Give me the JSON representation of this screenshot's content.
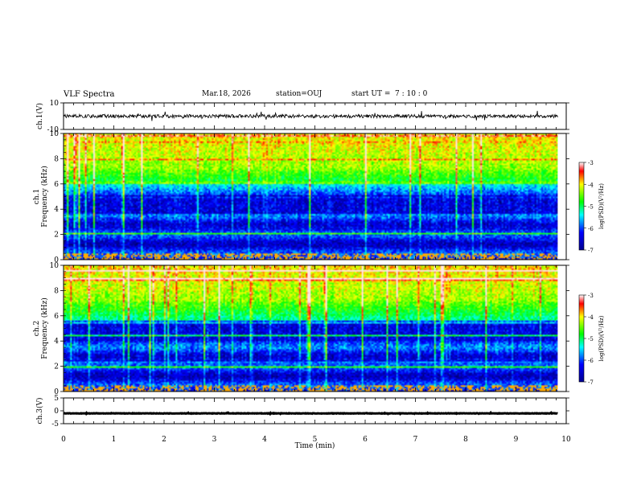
{
  "header": {
    "title": "VLF Spectra",
    "date": "Mar.18, 2026",
    "station": "station=OUJ",
    "start_ut_label": "start  UT =",
    "start_ut_value": "7 : 10 : 0"
  },
  "colors": {
    "trace": "#000000",
    "frame": "#000000"
  },
  "chart_data": [
    {
      "type": "line",
      "name": "ch1-waveform",
      "ylabel": "ch.1(V)",
      "ylim": [
        -10,
        10
      ],
      "yticks": [
        "10",
        "-10"
      ],
      "x_range_min": [
        0,
        9.83
      ],
      "description_values": {
        "baseline": 0,
        "amplitude_approx": 1.5
      }
    },
    {
      "type": "heatmap",
      "name": "ch1-spectrogram",
      "ylabel_line1": "ch.1",
      "ylabel_line2": "Frequency (kHz)",
      "ylim": [
        0,
        10
      ],
      "yticks": [
        "0",
        "2",
        "4",
        "6",
        "8",
        "10"
      ],
      "xlim": [
        0,
        10
      ],
      "data_end_min": 9.83,
      "colorbar": {
        "label": "log(PSD)(V²/Hz)",
        "range": [
          -7,
          -3
        ],
        "ticks": [
          "-3",
          "-4",
          "-5",
          "-6",
          "-7"
        ]
      }
    },
    {
      "type": "heatmap",
      "name": "ch2-spectrogram",
      "ylabel_line1": "ch.2",
      "ylabel_line2": "Frequency (kHz)",
      "ylim": [
        0,
        10
      ],
      "yticks": [
        "0",
        "2",
        "4",
        "6",
        "8",
        "10"
      ],
      "xlim": [
        0,
        10
      ],
      "data_end_min": 9.83,
      "colorbar": {
        "label": "log(PSD)(V²/Hz)",
        "range": [
          -7,
          -3
        ],
        "ticks": [
          "-3",
          "-4",
          "-5",
          "-6",
          "-7"
        ]
      }
    },
    {
      "type": "line",
      "name": "ch3-waveform",
      "ylabel": "ch.3(V)",
      "ylim": [
        -5,
        5
      ],
      "yticks": [
        "5",
        "0",
        "-5"
      ],
      "x_range_min": [
        0,
        9.83
      ],
      "description_values": {
        "baseline": -1,
        "amplitude_approx": 0.2
      }
    }
  ],
  "xaxis": {
    "label": "Time (min)",
    "ticks": [
      "0",
      "1",
      "2",
      "3",
      "4",
      "5",
      "6",
      "7",
      "8",
      "9",
      "10"
    ]
  }
}
